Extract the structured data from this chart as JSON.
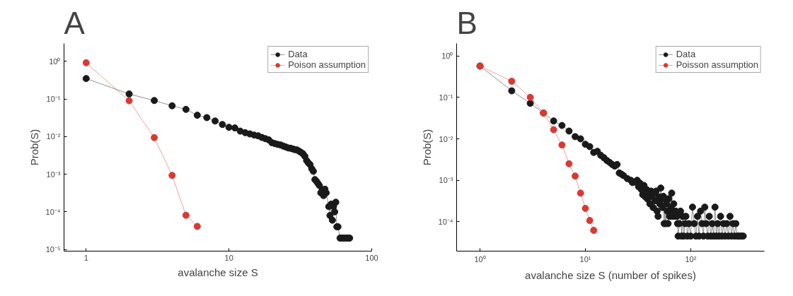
{
  "chart_data": [
    {
      "type": "line",
      "title": "A",
      "xlabel": "avalanche size S",
      "ylabel": "Prob(S)",
      "log": "xy",
      "marker": "circle",
      "legend": "top right",
      "xlim": [
        0.7,
        100
      ],
      "ylim": [
        9e-06,
        3
      ],
      "xticks": [
        1,
        10,
        100
      ],
      "yticks": [
        {
          "value": 1e-05,
          "label": "10⁻⁵"
        },
        {
          "value": 0.0001,
          "label": "10⁻⁴"
        },
        {
          "value": 0.001,
          "label": "10⁻³"
        },
        {
          "value": 0.01,
          "label": "10⁻²"
        },
        {
          "value": 0.1,
          "label": "10⁻¹"
        },
        {
          "value": 1,
          "label": "10⁰"
        }
      ],
      "series": [
        {
          "name": "Data",
          "color": "#1a1a1a",
          "x": [
            1,
            2,
            3,
            4,
            5,
            6,
            7,
            8,
            9,
            10,
            11,
            12,
            13,
            14,
            15,
            16,
            17,
            18,
            19,
            20,
            21,
            22,
            23,
            24,
            25,
            26,
            27,
            28,
            29,
            30,
            31,
            32,
            33,
            34,
            35,
            36,
            37,
            38,
            39,
            40,
            41,
            42,
            43,
            44,
            45,
            46,
            47,
            48,
            50,
            51,
            52,
            53,
            54,
            55,
            56,
            57,
            58,
            60,
            62,
            64,
            66,
            68,
            70
          ],
          "values": [
            0.35,
            0.136,
            0.091,
            0.066,
            0.053,
            0.037,
            0.032,
            0.026,
            0.021,
            0.0177,
            0.017,
            0.014,
            0.0127,
            0.0118,
            0.011,
            0.0105,
            0.0095,
            0.0088,
            0.0082,
            0.0069,
            0.0065,
            0.0062,
            0.006,
            0.0056,
            0.0053,
            0.005,
            0.0049,
            0.0047,
            0.0045,
            0.0044,
            0.0041,
            0.0038,
            0.0035,
            0.003,
            0.0023,
            0.002,
            0.0018,
            0.0014,
            0.0012,
            0.00072,
            0.00065,
            0.00057,
            0.0005,
            0.00032,
            0.00038,
            0.00027,
            0.0004,
            0.00032,
            0.000138,
            8e-05,
            0.00016,
            6e-05,
            0.00014,
            0.0001,
            0.00018,
            4e-05,
            4e-05,
            2e-05,
            2e-05,
            2e-05,
            2e-05,
            2e-05,
            2e-05
          ]
        },
        {
          "name": "Poison assumption",
          "color": "#d83a33",
          "x": [
            1,
            2,
            3,
            4,
            5,
            6
          ],
          "values": [
            0.92,
            0.09,
            0.0094,
            0.00093,
            8.1e-05,
            4.1e-05
          ]
        }
      ]
    },
    {
      "type": "line",
      "title": "B",
      "xlabel": "avalanche size S (number of spikes)",
      "ylabel": "Prob(S)",
      "log": "xy",
      "marker": "circle",
      "legend": "top right",
      "xlim": [
        0.6,
        500
      ],
      "ylim": [
        1.95e-05,
        2
      ],
      "xticks": [
        {
          "value": 1,
          "label": "10⁰"
        },
        {
          "value": 10,
          "label": "10¹"
        },
        {
          "value": 100,
          "label": "10²"
        }
      ],
      "yticks": [
        {
          "value": 0.0001,
          "label": "10⁻⁴"
        },
        {
          "value": 0.001,
          "label": "10⁻³"
        },
        {
          "value": 0.01,
          "label": "10⁻²"
        },
        {
          "value": 0.1,
          "label": "10⁻¹"
        },
        {
          "value": 1,
          "label": "10⁰"
        }
      ],
      "series": [
        {
          "name": "Data",
          "color": "#1a1a1a",
          "x": [
            1,
            2,
            3,
            4,
            5,
            6,
            7,
            8,
            9,
            10,
            11,
            12,
            13,
            14,
            15,
            16,
            17,
            18,
            19,
            20,
            21,
            22,
            23,
            25,
            27,
            28,
            30,
            31,
            32,
            33,
            34,
            35,
            36,
            37,
            38,
            39,
            40,
            41,
            42,
            43,
            44,
            45,
            46,
            47,
            48,
            49,
            50,
            51,
            52,
            53,
            54,
            55,
            56,
            57,
            58,
            59,
            60,
            61,
            62,
            63,
            64,
            65,
            66,
            67,
            68,
            69,
            70,
            72,
            74,
            75,
            76,
            78,
            80,
            82,
            84,
            86,
            88,
            90,
            93,
            96,
            100,
            104,
            108,
            112,
            116,
            120,
            124,
            128,
            132,
            136,
            140,
            145,
            150,
            155,
            160,
            165,
            170,
            175,
            180,
            186,
            192,
            198,
            205,
            212,
            220,
            228,
            236,
            244,
            252,
            260,
            268,
            276,
            285,
            295,
            305,
            315
          ],
          "values": [
            0.57,
            0.144,
            0.072,
            0.042,
            0.027,
            0.021,
            0.0154,
            0.0113,
            0.01,
            0.0074,
            0.0065,
            0.0047,
            0.005,
            0.004,
            0.0035,
            0.003,
            0.0027,
            0.0024,
            0.0022,
            0.0024,
            0.0015,
            0.0014,
            0.0013,
            0.0011,
            0.001,
            0.00088,
            0.0009,
            0.001,
            0.0007,
            0.00085,
            0.0006,
            0.00045,
            0.00075,
            0.0004,
            0.0006,
            0.00035,
            0.0005,
            0.00027,
            0.00055,
            0.0004,
            0.00022,
            0.0005,
            0.00032,
            0.00055,
            0.00018,
            0.000135,
            0.0004,
            0.00027,
            0.00065,
            0.00036,
            0.00022,
            0.00041,
            9e-05,
            0.00036,
            9e-05,
            0.00027,
            0.00018,
            9e-05,
            0.00036,
            0.000135,
            0.00018,
            0.00022,
            0.00049,
            0.000135,
            0.00018,
            0.00027,
            0.000135,
            0.00018,
            0.000135,
            9e-05,
            4.5e-05,
            9e-05,
            0.00018,
            4.5e-05,
            0.000135,
            4.5e-05,
            9e-05,
            0.000135,
            4.5e-05,
            9e-05,
            4.5e-05,
            0.000225,
            9e-05,
            4.5e-05,
            0.000135,
            4.5e-05,
            0.00018,
            9e-05,
            4.5e-05,
            0.000225,
            9e-05,
            4.5e-05,
            0.000135,
            4.5e-05,
            9e-05,
            4.5e-05,
            0.000225,
            4.5e-05,
            9e-05,
            4.5e-05,
            0.000135,
            4.5e-05,
            9e-05,
            4.5e-05,
            9e-05,
            4.5e-05,
            0.000135,
            4.5e-05,
            9e-05,
            4.5e-05,
            9e-05,
            4.5e-05,
            4.5e-05,
            4.5e-05,
            4.5e-05,
            4.5e-05
          ]
        },
        {
          "name": "Poisson assumption",
          "color": "#d83a33",
          "x": [
            1,
            2,
            3,
            4,
            5,
            6,
            7,
            8,
            9,
            10,
            11,
            12
          ],
          "values": [
            0.57,
            0.245,
            0.1,
            0.042,
            0.0166,
            0.0071,
            0.0025,
            0.00126,
            0.00049,
            0.00021,
            0.000107,
            6.2e-05
          ]
        }
      ]
    }
  ]
}
